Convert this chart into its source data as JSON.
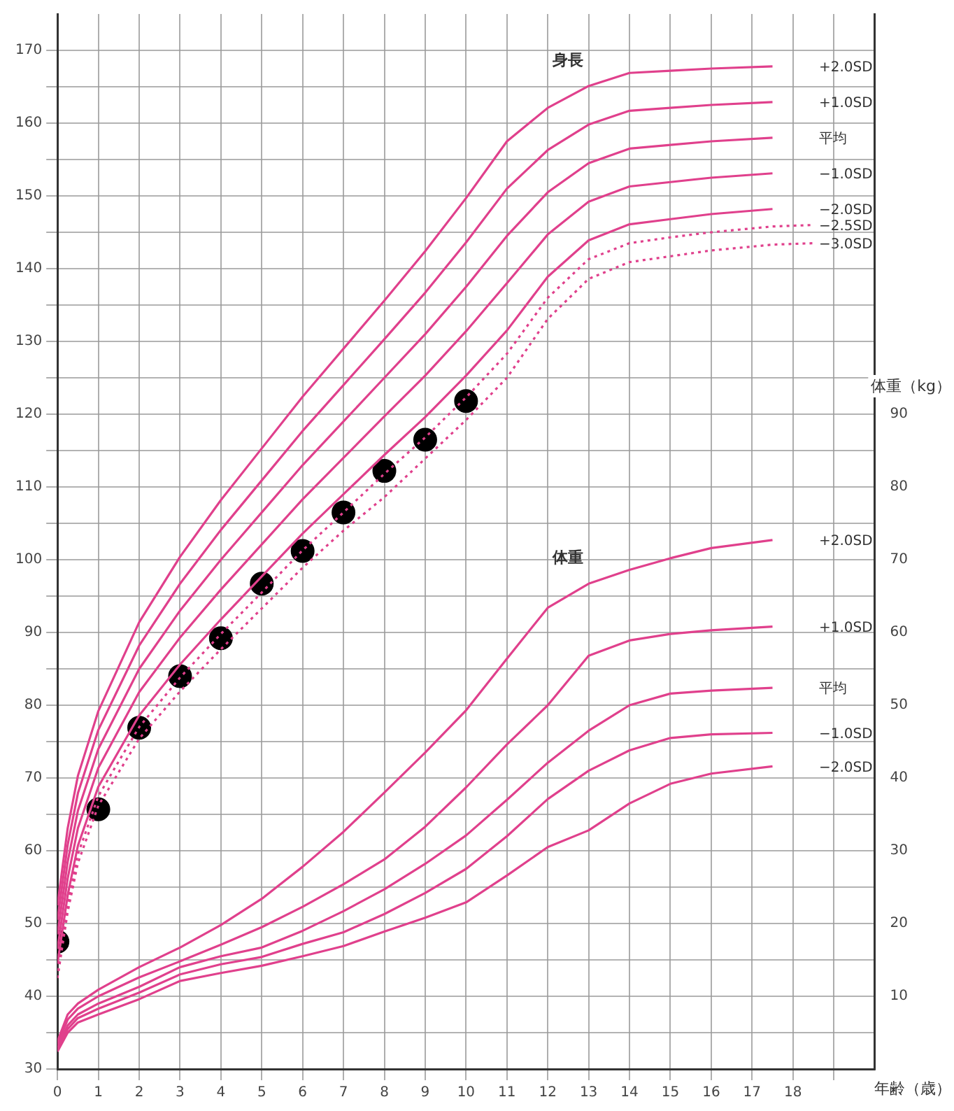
{
  "chart_data": {
    "type": "line",
    "xlabel": "年齢（歳）",
    "y2label": "体重（kg）",
    "grid": true,
    "legend": false,
    "marker": "none",
    "xlim": [
      0,
      20
    ],
    "xticks": [
      0,
      1,
      2,
      3,
      4,
      5,
      6,
      7,
      8,
      9,
      10,
      11,
      12,
      13,
      14,
      15,
      16,
      17,
      18,
      {
        "value": 19,
        "label": null
      }
    ],
    "ylim": [
      30,
      175
    ],
    "yticks": [
      30,
      {
        "value": 35,
        "label": null
      },
      40,
      {
        "value": 45,
        "label": null
      },
      50,
      {
        "value": 55,
        "label": null
      },
      60,
      {
        "value": 65,
        "label": null
      },
      70,
      {
        "value": 75,
        "label": null
      },
      80,
      {
        "value": 85,
        "label": null
      },
      90,
      {
        "value": 95,
        "label": null
      },
      100,
      {
        "value": 105,
        "label": null
      },
      110,
      {
        "value": 115,
        "label": null
      },
      120,
      {
        "value": 125,
        "label": null
      },
      130,
      {
        "value": 135,
        "label": null
      },
      140,
      {
        "value": 145,
        "label": null
      },
      150,
      {
        "value": 155,
        "label": null
      },
      160,
      {
        "value": 165,
        "label": null
      },
      170
    ],
    "y2lim": [
      0,
      145
    ],
    "y2ticks": [
      10,
      20,
      30,
      40,
      50,
      60,
      70,
      80,
      90
    ],
    "annotations": [
      "身長",
      "体重"
    ],
    "series": [
      {
        "name": "+2.0SD",
        "color": "#e0408c",
        "line_style": "solid",
        "x": [
          0,
          0.25,
          0.5,
          1,
          1.5,
          2,
          3,
          4,
          5,
          6,
          7,
          8,
          9,
          10,
          11,
          12,
          13,
          14,
          15,
          16,
          17.5
        ],
        "values": [
          52.5,
          63.1,
          70.3,
          79.2,
          85.3,
          91.4,
          100.4,
          108.2,
          115.3,
          122.4,
          129,
          135.6,
          142.4,
          149.7,
          157.5,
          162.1,
          165.1,
          166.9,
          167.2,
          167.5,
          167.8
        ]
      },
      {
        "name": "+1.0SD",
        "color": "#e0408c",
        "line_style": "solid",
        "x": [
          0,
          0.25,
          0.5,
          1,
          1.5,
          2,
          3,
          4,
          5,
          6,
          7,
          8,
          9,
          10,
          11,
          12,
          13,
          14,
          15,
          16,
          17.5
        ],
        "values": [
          50.5,
          60.8,
          67.9,
          76.6,
          82.4,
          88.2,
          96.7,
          104.1,
          110.9,
          117.7,
          124,
          130.3,
          136.7,
          143.6,
          151,
          156.3,
          159.8,
          161.7,
          162.1,
          162.5,
          162.9
        ]
      },
      {
        "name": "平均",
        "color": "#e0408c",
        "line_style": "solid",
        "x": [
          0,
          0.25,
          0.5,
          1,
          1.5,
          2,
          3,
          4,
          5,
          6,
          7,
          8,
          9,
          10,
          11,
          12,
          13,
          14,
          15,
          16,
          17.5
        ],
        "values": [
          48.5,
          58.5,
          65.5,
          74,
          79.5,
          85,
          93,
          100,
          106.5,
          113,
          119,
          125,
          131,
          137.5,
          144.5,
          150.5,
          154.5,
          156.5,
          157,
          157.5,
          158
        ]
      },
      {
        "name": "−1.0SD",
        "color": "#e0408c",
        "line_style": "solid",
        "x": [
          0,
          0.25,
          0.5,
          1,
          1.5,
          2,
          3,
          4,
          5,
          6,
          7,
          8,
          9,
          10,
          11,
          12,
          13,
          14,
          15,
          16,
          17.5
        ],
        "values": [
          46.5,
          56.2,
          63.1,
          71.4,
          76.6,
          81.8,
          89.3,
          95.9,
          102.1,
          108.3,
          114,
          119.7,
          125.3,
          131.4,
          138,
          144.7,
          149.2,
          151.3,
          151.9,
          152.5,
          153.1
        ]
      },
      {
        "name": "−2.0SD",
        "color": "#e0408c",
        "line_style": "solid",
        "x": [
          0,
          0.25,
          0.5,
          1,
          1.5,
          2,
          3,
          4,
          5,
          6,
          7,
          8,
          9,
          10,
          11,
          12,
          13,
          14,
          15,
          16,
          17.5
        ],
        "values": [
          44.5,
          53.9,
          60.7,
          68.8,
          73.7,
          78.6,
          85.6,
          91.8,
          97.7,
          103.6,
          109,
          114.4,
          119.6,
          125.3,
          131.5,
          138.9,
          143.9,
          146.1,
          146.8,
          147.5,
          148.2
        ]
      },
      {
        "name": "−2.5SD",
        "color": "#e0408c",
        "line_style": "dotted",
        "x": [
          0,
          0.25,
          0.5,
          1,
          1.5,
          2,
          3,
          4,
          5,
          6,
          7,
          8,
          9,
          10,
          11,
          12,
          13,
          14,
          15,
          16,
          17.5,
          18.5
        ],
        "values": [
          43.5,
          52.8,
          59.5,
          67.5,
          72.3,
          77,
          83.8,
          89.8,
          95.5,
          101.3,
          106.5,
          111.8,
          116.8,
          122.3,
          128.3,
          136,
          141.3,
          143.5,
          144.3,
          145,
          145.8,
          146
        ]
      },
      {
        "name": "−3.0SD",
        "color": "#e0408c",
        "line_style": "dotted",
        "x": [
          0,
          0.25,
          0.5,
          1,
          1.5,
          2,
          3,
          4,
          5,
          6,
          7,
          8,
          9,
          10,
          11,
          12,
          13,
          14,
          15,
          16,
          17.5,
          18.5
        ],
        "values": [
          42.5,
          51.6,
          58.3,
          66.2,
          70.8,
          75.4,
          81.9,
          87.7,
          93.3,
          98.9,
          104,
          108.6,
          113.9,
          119.2,
          125,
          133.1,
          138.6,
          140.9,
          141.7,
          142.5,
          143.3,
          143.5
        ]
      },
      {
        "name": "+2.0SD",
        "color": "#e0408c",
        "line_style": "solid",
        "axis": "y2",
        "x": [
          0,
          0.25,
          0.5,
          1,
          2,
          3,
          4,
          5,
          6,
          7,
          8,
          9,
          10,
          11,
          12,
          13,
          14,
          15,
          16,
          17.5
        ],
        "values": [
          3.8,
          7.5,
          9,
          10.9,
          14,
          16.7,
          19.8,
          23.4,
          27.8,
          32.6,
          38,
          43.5,
          49.3,
          56.4,
          63.4,
          66.7,
          68.6,
          70.2,
          71.6,
          72.7
        ]
      },
      {
        "name": "+1.0SD",
        "color": "#e0408c",
        "line_style": "solid",
        "axis": "y2",
        "x": [
          0,
          0.25,
          0.5,
          1,
          2,
          3,
          4,
          5,
          6,
          7,
          8,
          9,
          10,
          11,
          12,
          13,
          14,
          15,
          16,
          17.5
        ],
        "values": [
          3.4,
          6.8,
          8.3,
          10,
          12.6,
          14.8,
          17.1,
          19.5,
          22.3,
          25.4,
          28.8,
          33.3,
          38.7,
          44.6,
          50,
          56.8,
          58.9,
          59.8,
          60.3,
          60.8
        ]
      },
      {
        "name": "平均",
        "color": "#e0408c",
        "line_style": "solid",
        "axis": "y2",
        "x": [
          0,
          0.25,
          0.5,
          1,
          2,
          3,
          4,
          5,
          6,
          7,
          8,
          9,
          10,
          11,
          12,
          13,
          14,
          15,
          16,
          17.5
        ],
        "values": [
          3,
          6,
          7.5,
          9,
          11.3,
          14,
          15.5,
          16.7,
          19,
          21.7,
          24.7,
          28.2,
          32.1,
          37,
          42.1,
          46.5,
          50,
          51.6,
          52,
          52.4
        ]
      },
      {
        "name": "−1.0SD",
        "color": "#e0408c",
        "line_style": "solid",
        "axis": "y2",
        "x": [
          0,
          0.25,
          0.5,
          1,
          2,
          3,
          4,
          5,
          6,
          7,
          8,
          9,
          10,
          11,
          12,
          13,
          14,
          15,
          16,
          17.5
        ],
        "values": [
          2.7,
          5.5,
          7,
          8.3,
          10.5,
          13,
          14.4,
          15.4,
          17.2,
          18.8,
          21.3,
          24.2,
          27.5,
          32,
          37.1,
          41,
          43.8,
          45.5,
          46,
          46.2
        ]
      },
      {
        "name": "−2.0SD",
        "color": "#e0408c",
        "line_style": "solid",
        "axis": "y2",
        "x": [
          0,
          0.25,
          0.5,
          1,
          2,
          3,
          4,
          5,
          6,
          7,
          8,
          9,
          10,
          11,
          12,
          13,
          14,
          15,
          16,
          17.5
        ],
        "values": [
          2.4,
          5,
          6.4,
          7.5,
          9.6,
          12.1,
          13.2,
          14.2,
          15.5,
          16.9,
          18.9,
          20.8,
          22.9,
          26.6,
          30.5,
          32.8,
          36.5,
          39.2,
          40.6,
          41.6
        ]
      },
      {
        "type": "scatter",
        "marker": "circle",
        "color": "#000000",
        "x": [
          0,
          1,
          2,
          3,
          4,
          5,
          6,
          7,
          8,
          9,
          10
        ],
        "values": [
          47.5,
          65.7,
          76.9,
          84,
          89.2,
          96.7,
          101.2,
          106.5,
          112.2,
          116.5,
          121.8
        ]
      }
    ]
  }
}
